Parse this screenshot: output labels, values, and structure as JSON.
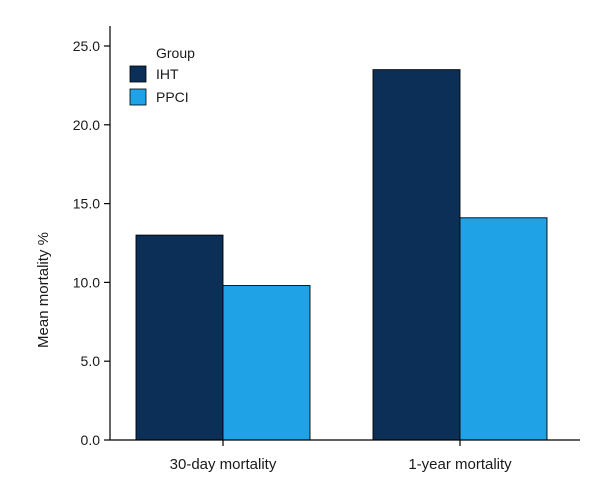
{
  "chart_data": {
    "type": "bar",
    "title": "",
    "xlabel": "",
    "ylabel": "Mean mortality %",
    "categories": [
      "30-day mortality",
      "1-year mortality"
    ],
    "series": [
      {
        "name": "IHT",
        "values": [
          13.0,
          23.5
        ],
        "color": "#0c2f57"
      },
      {
        "name": "PPCI",
        "values": [
          9.8,
          14.1
        ],
        "color": "#1fa3e6"
      }
    ],
    "ylim": [
      0,
      25
    ],
    "yticks": [
      "0.0",
      "5.0",
      "10.0",
      "15.0",
      "20.0",
      "25.0"
    ],
    "ytick_values": [
      0,
      5,
      10,
      15,
      20,
      25
    ],
    "legend": {
      "title": "Group",
      "placement": "top-left"
    },
    "grid": false
  }
}
